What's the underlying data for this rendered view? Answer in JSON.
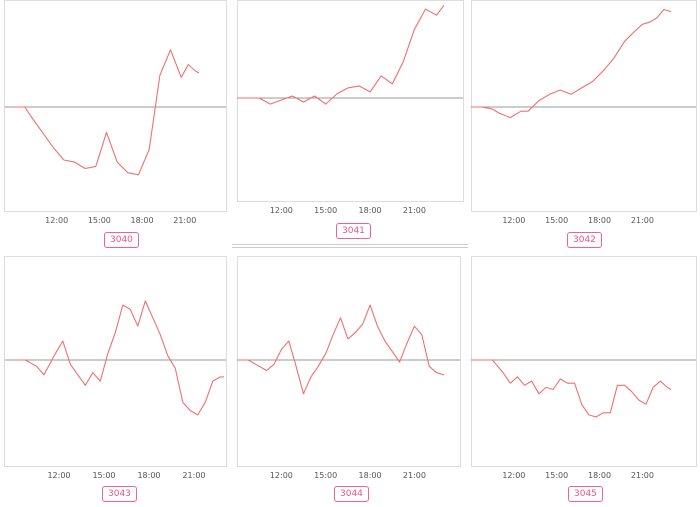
{
  "chart_data": [
    {
      "type": "line",
      "label": "3040",
      "x_ticks": [
        "12:00",
        "15:00",
        "18:00",
        "21:00"
      ],
      "x": [
        9.0,
        9.75,
        10.25,
        11.0,
        11.75,
        12.5,
        13.25,
        14.0,
        14.75,
        15.5,
        16.25,
        17.0,
        17.75,
        18.5,
        19.25,
        20.0,
        20.75,
        21.25,
        21.75,
        22.0
      ],
      "values": [
        0,
        0,
        -0.5,
        -1.2,
        -1.9,
        -2.5,
        -2.6,
        -2.9,
        -2.8,
        -1.2,
        -2.6,
        -3.1,
        -3.2,
        -2.0,
        1.5,
        2.7,
        1.4,
        2.0,
        1.7,
        1.6
      ],
      "ylim": [
        -5,
        5
      ],
      "baseline": 0,
      "color": "#f07070"
    },
    {
      "type": "line",
      "label": "3041",
      "x_ticks": [
        "12:00",
        "15:00",
        "18:00",
        "21:00"
      ],
      "x": [
        9.0,
        9.75,
        10.5,
        11.25,
        12.0,
        12.75,
        13.5,
        14.25,
        15.0,
        15.75,
        16.5,
        17.25,
        18.0,
        18.75,
        19.5,
        20.25,
        21.0,
        21.75,
        22.5,
        23.0
      ],
      "values": [
        0,
        0,
        0,
        -0.3,
        -0.1,
        0.1,
        -0.2,
        0.1,
        -0.3,
        0.2,
        0.5,
        0.6,
        0.3,
        1.1,
        0.7,
        1.8,
        3.4,
        4.4,
        4.1,
        4.6
      ],
      "ylim": [
        -5,
        5
      ],
      "baseline": 0,
      "color": "#f07070"
    },
    {
      "type": "line",
      "label": "3042",
      "x_ticks": [
        "12:00",
        "15:00",
        "18:00",
        "21:00"
      ],
      "x": [
        9.0,
        9.75,
        10.5,
        11.0,
        11.75,
        12.5,
        13.0,
        13.75,
        14.5,
        15.25,
        16.0,
        16.75,
        17.5,
        18.25,
        19.0,
        19.75,
        20.5,
        21.0,
        21.5,
        22.0,
        22.5,
        23.0
      ],
      "values": [
        0,
        0,
        -0.1,
        -0.3,
        -0.5,
        -0.2,
        -0.2,
        0.3,
        0.6,
        0.8,
        0.6,
        0.9,
        1.2,
        1.7,
        2.3,
        3.1,
        3.6,
        3.9,
        4.0,
        4.2,
        4.6,
        4.5
      ],
      "ylim": [
        -5,
        5
      ],
      "baseline": 0,
      "color": "#f07070"
    },
    {
      "type": "line",
      "label": "3043",
      "x_ticks": [
        "12:00",
        "15:00",
        "18:00",
        "21:00"
      ],
      "x": [
        9.0,
        9.75,
        10.5,
        11.0,
        11.75,
        12.25,
        12.75,
        13.25,
        13.75,
        14.25,
        14.75,
        15.25,
        15.75,
        16.25,
        16.75,
        17.25,
        17.75,
        18.25,
        18.75,
        19.25,
        19.75,
        20.25,
        20.75,
        21.25,
        21.75,
        22.25,
        22.75,
        23.0
      ],
      "values": [
        0,
        0,
        -0.3,
        -0.7,
        0.3,
        0.9,
        -0.2,
        -0.7,
        -1.2,
        -0.6,
        -1.0,
        0.3,
        1.3,
        2.6,
        2.4,
        1.6,
        2.8,
        2.0,
        1.2,
        0.2,
        -0.4,
        -2.0,
        -2.4,
        -2.6,
        -2.0,
        -1.0,
        -0.8,
        -0.8
      ],
      "ylim": [
        -5,
        5
      ],
      "baseline": 0,
      "color": "#f07070"
    },
    {
      "type": "line",
      "label": "3044",
      "x_ticks": [
        "12:00",
        "15:00",
        "18:00",
        "21:00"
      ],
      "x": [
        9.0,
        9.75,
        10.5,
        11.0,
        11.5,
        12.0,
        12.5,
        13.0,
        13.5,
        14.0,
        14.5,
        15.0,
        15.5,
        16.0,
        16.5,
        17.0,
        17.5,
        18.0,
        18.5,
        19.0,
        19.5,
        20.0,
        20.5,
        21.0,
        21.5,
        22.0,
        22.5,
        23.0
      ],
      "values": [
        0,
        0,
        -0.3,
        -0.5,
        -0.2,
        0.5,
        0.9,
        -0.3,
        -1.6,
        -0.8,
        -0.3,
        0.3,
        1.2,
        2.0,
        1.0,
        1.3,
        1.7,
        2.6,
        1.6,
        0.9,
        0.4,
        -0.1,
        0.8,
        1.6,
        1.2,
        -0.3,
        -0.6,
        -0.7
      ],
      "ylim": [
        -5,
        5
      ],
      "baseline": 0,
      "color": "#f07070"
    },
    {
      "type": "line",
      "label": "3045",
      "x_ticks": [
        "12:00",
        "15:00",
        "18:00",
        "21:00"
      ],
      "x": [
        9.0,
        9.75,
        10.5,
        11.25,
        11.75,
        12.25,
        12.75,
        13.25,
        13.75,
        14.25,
        14.75,
        15.25,
        15.75,
        16.25,
        16.75,
        17.25,
        17.75,
        18.25,
        18.75,
        19.25,
        19.75,
        20.25,
        20.75,
        21.25,
        21.75,
        22.25,
        22.75,
        23.0
      ],
      "values": [
        0,
        0,
        0,
        -0.6,
        -1.1,
        -0.8,
        -1.2,
        -1.0,
        -1.6,
        -1.3,
        -1.4,
        -0.9,
        -1.1,
        -1.1,
        -2.1,
        -2.6,
        -2.7,
        -2.5,
        -2.5,
        -1.2,
        -1.2,
        -1.5,
        -1.9,
        -2.1,
        -1.3,
        -1.0,
        -1.3,
        -1.4
      ],
      "ylim": [
        -5,
        5
      ],
      "baseline": 0,
      "color": "#f07070"
    }
  ]
}
